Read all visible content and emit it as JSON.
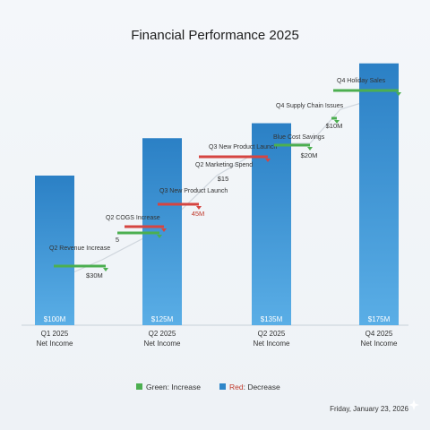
{
  "chart_data": {
    "type": "bar",
    "title": "Financial Performance 2025",
    "categories": [
      {
        "line1": "Q1 2025",
        "line2": "Net Income"
      },
      {
        "line1": "Q2 2025",
        "line2": "Net Income"
      },
      {
        "line1": "Q2 2025",
        "line2": "Net Income"
      },
      {
        "line1": "Q4 2025",
        "line2": "Net Income"
      }
    ],
    "values": [
      100,
      125,
      135,
      175
    ],
    "value_labels": [
      "$100M",
      "$125M",
      "$135M",
      "$175M"
    ],
    "ylim": [
      0,
      200
    ],
    "grid": false,
    "annotations": [
      {
        "label": "Q2 Revenue Increase",
        "value_label": "$30M",
        "kind": "increase",
        "after_bar": 0
      },
      {
        "label": "Q2 COGS Increase",
        "value_label": "5",
        "kind": "increase",
        "after_bar": 1
      },
      {
        "label": "",
        "value_label": "",
        "kind": "decrease",
        "after_bar": 1
      },
      {
        "label": "Q3 New Product Launch",
        "value_label": "45M",
        "kind": "decrease",
        "after_bar": 1
      },
      {
        "label": "Q3 New Product Launch",
        "value_label": "",
        "kind": "decrease",
        "after_bar": 2
      },
      {
        "label": "Q2 Marketing Spend",
        "value_label": "$15",
        "kind": "decrease",
        "after_bar": 2
      },
      {
        "label": "Blue Cost Savings",
        "value_label": "$20M",
        "kind": "increase",
        "after_bar": 2
      },
      {
        "label": "Q4 Supply Chain Issues",
        "value_label": "$10M",
        "kind": "increase",
        "after_bar": 2
      },
      {
        "label": "Q4 Holiday Sales",
        "value_label": "",
        "kind": "increase",
        "after_bar": 3
      }
    ],
    "legend": {
      "position": "bottom-center",
      "items": [
        {
          "text_colored": "",
          "text_plain": "Green: Increase",
          "swatch_color": "#4caf50",
          "text_color": "#333333"
        },
        {
          "text_colored": "Red",
          "text_plain": ": Decrease",
          "swatch_color": "#2e86c9",
          "text_color": "#c0392b"
        }
      ]
    },
    "colors": {
      "bar_top": "#2b80c5",
      "bar_bottom": "#5aaee6",
      "increase": "#4caf50",
      "decrease": "#d64541",
      "connector": "#cfd6dd"
    }
  },
  "footer": {
    "date": "Friday, January 23, 2026"
  }
}
